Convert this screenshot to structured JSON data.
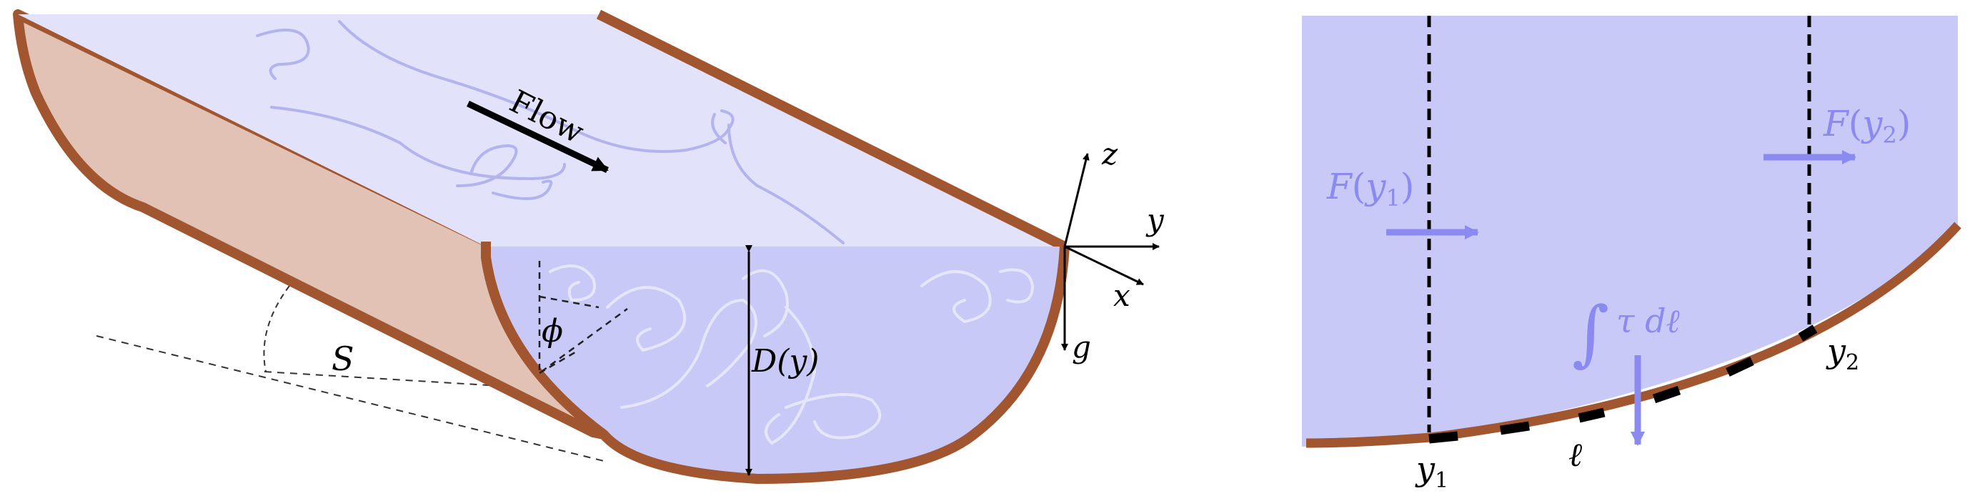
{
  "left_panel": {
    "flow_label": "Flow",
    "slope_label": "S",
    "angle_label": "ϕ",
    "depth_label": "D(y)",
    "axes": {
      "z": "z",
      "y": "y",
      "x": "x",
      "g": "g"
    }
  },
  "right_panel": {
    "force_left": {
      "F": "F",
      "sub": "1"
    },
    "force_right": {
      "F": "F",
      "sub": "2"
    },
    "stress_label": "τ dℓ",
    "integral_sign": "∫",
    "arc_label": "ℓ",
    "y1": {
      "main": "y",
      "sub": "1"
    },
    "y2": {
      "main": "y",
      "sub": "2"
    }
  },
  "colors": {
    "water_top": "#e2e2fb",
    "water_section": "#c9c9f8",
    "bank": "#a2562f",
    "bank_fill": "#e2c2b4",
    "force_arrow": "#8a8af0",
    "swirl": "#b3b3ee",
    "swirl_section": "#e6e6fb"
  }
}
